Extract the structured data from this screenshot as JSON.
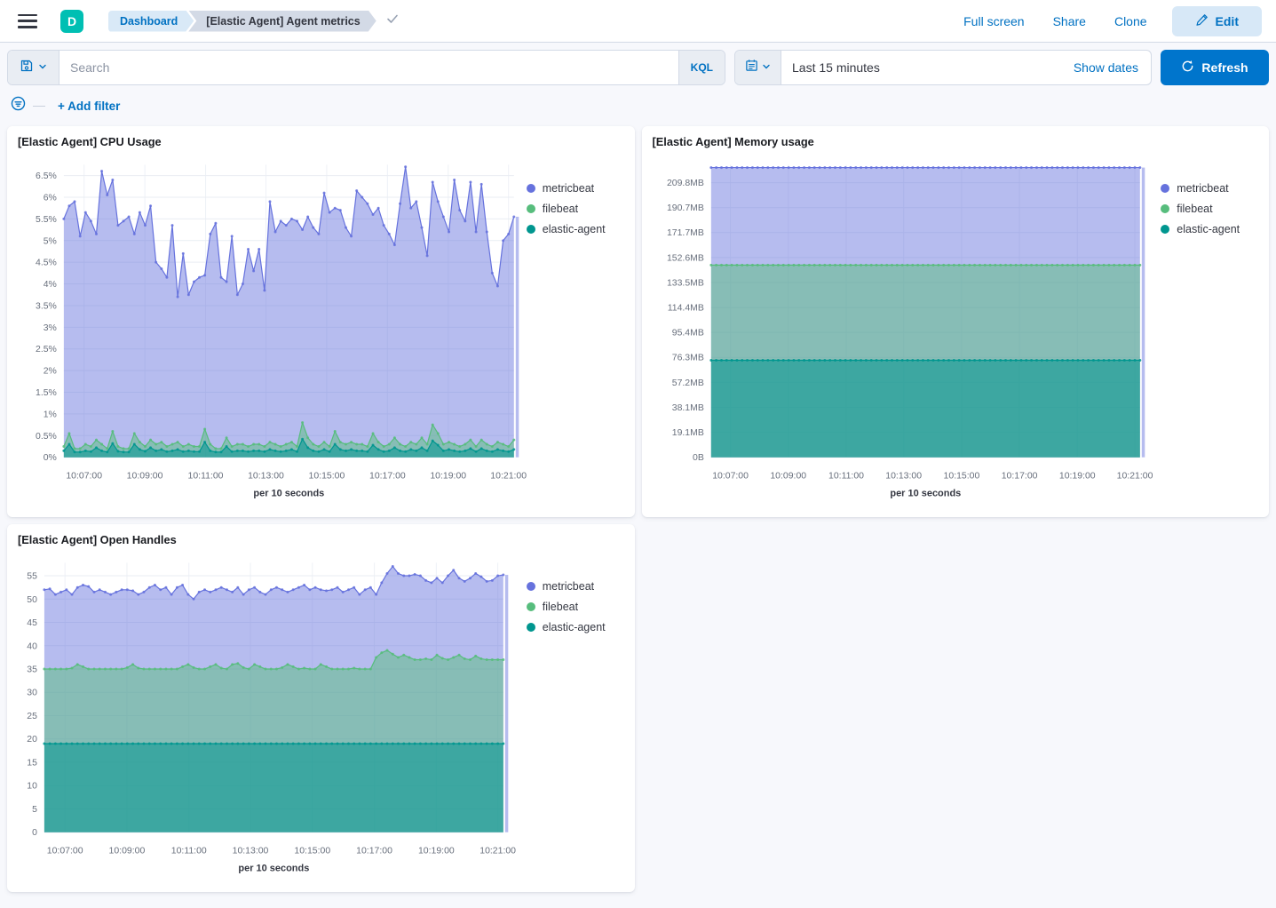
{
  "header": {
    "avatar_initial": "D",
    "breadcrumbs": [
      {
        "label": "Dashboard"
      },
      {
        "label": "[Elastic Agent] Agent metrics"
      }
    ],
    "actions": {
      "full_screen": "Full screen",
      "share": "Share",
      "clone": "Clone",
      "edit": "Edit"
    }
  },
  "toolbar": {
    "search_placeholder": "Search",
    "kql_label": "KQL",
    "time_range": "Last 15 minutes",
    "show_dates_label": "Show dates",
    "refresh_label": "Refresh",
    "add_filter_label": "+ Add filter"
  },
  "colors": {
    "accent_blue": "#0071c2",
    "refresh_blue": "#0075cc",
    "avatar_teal": "#00bfb3",
    "metricbeat": "#6672dd",
    "filebeat": "#57bd7d",
    "elastic_agent": "#00968f"
  },
  "chart_data": [
    {
      "type": "area",
      "title": "[Elastic Agent] CPU Usage",
      "x_axis_label": "per 10 seconds",
      "legend_position": "right",
      "grid": true,
      "ylim": [
        0,
        6.75
      ],
      "y_ticks": [
        {
          "v": 0,
          "label": "0%"
        },
        {
          "v": 0.5,
          "label": "0.5%"
        },
        {
          "v": 1,
          "label": "1%"
        },
        {
          "v": 1.5,
          "label": "1.5%"
        },
        {
          "v": 2,
          "label": "2%"
        },
        {
          "v": 2.5,
          "label": "2.5%"
        },
        {
          "v": 3,
          "label": "3%"
        },
        {
          "v": 3.5,
          "label": "3.5%"
        },
        {
          "v": 4,
          "label": "4%"
        },
        {
          "v": 4.5,
          "label": "4.5%"
        },
        {
          "v": 5,
          "label": "5%"
        },
        {
          "v": 5.5,
          "label": "5.5%"
        },
        {
          "v": 6,
          "label": "6%"
        },
        {
          "v": 6.5,
          "label": "6.5%"
        }
      ],
      "x_ticks": [
        {
          "f": 0.045,
          "label": "10:07:00"
        },
        {
          "f": 0.18,
          "label": "10:09:00"
        },
        {
          "f": 0.315,
          "label": "10:11:00"
        },
        {
          "f": 0.449,
          "label": "10:13:00"
        },
        {
          "f": 0.584,
          "label": "10:15:00"
        },
        {
          "f": 0.719,
          "label": "10:17:00"
        },
        {
          "f": 0.854,
          "label": "10:19:00"
        },
        {
          "f": 0.988,
          "label": "10:21:00"
        }
      ],
      "series": [
        {
          "name": "metricbeat",
          "color": "#6672dd",
          "fill": "rgba(102,114,221,0.48)",
          "values": [
            5.5,
            5.8,
            5.9,
            5.1,
            5.65,
            5.45,
            5.15,
            6.6,
            6.05,
            6.4,
            5.35,
            5.45,
            5.55,
            5.15,
            5.65,
            5.35,
            5.8,
            4.5,
            4.35,
            4.15,
            5.35,
            3.7,
            4.7,
            3.75,
            4.05,
            4.15,
            4.2,
            5.15,
            5.4,
            4.15,
            4.05,
            5.1,
            3.75,
            4.0,
            4.8,
            4.3,
            4.8,
            3.85,
            5.9,
            5.2,
            5.45,
            5.35,
            5.5,
            5.45,
            5.25,
            5.55,
            5.3,
            5.15,
            6.1,
            5.65,
            5.75,
            5.7,
            5.3,
            5.1,
            6.15,
            6.0,
            5.85,
            5.6,
            5.75,
            5.35,
            5.15,
            4.9,
            5.85,
            6.7,
            5.75,
            5.9,
            5.3,
            4.65,
            6.35,
            5.9,
            5.55,
            5.2,
            6.4,
            5.7,
            5.45,
            6.35,
            5.2,
            6.3,
            5.2,
            4.25,
            3.95,
            5.0,
            5.15,
            5.55
          ]
        },
        {
          "name": "filebeat",
          "color": "#57bd7d",
          "fill": "rgba(87,189,125,0.5)",
          "values": [
            0.25,
            0.55,
            0.2,
            0.2,
            0.3,
            0.25,
            0.4,
            0.3,
            0.2,
            0.6,
            0.25,
            0.2,
            0.2,
            0.55,
            0.35,
            0.25,
            0.4,
            0.3,
            0.35,
            0.25,
            0.3,
            0.35,
            0.25,
            0.3,
            0.25,
            0.25,
            0.65,
            0.3,
            0.2,
            0.2,
            0.45,
            0.25,
            0.3,
            0.3,
            0.25,
            0.3,
            0.3,
            0.25,
            0.35,
            0.3,
            0.25,
            0.3,
            0.35,
            0.25,
            0.8,
            0.45,
            0.3,
            0.25,
            0.35,
            0.25,
            0.6,
            0.35,
            0.3,
            0.35,
            0.3,
            0.3,
            0.25,
            0.55,
            0.35,
            0.25,
            0.3,
            0.45,
            0.3,
            0.25,
            0.35,
            0.3,
            0.45,
            0.3,
            0.75,
            0.55,
            0.3,
            0.35,
            0.3,
            0.25,
            0.3,
            0.4,
            0.25,
            0.4,
            0.3,
            0.25,
            0.35,
            0.3,
            0.25,
            0.4
          ]
        },
        {
          "name": "elastic-agent",
          "color": "#00968f",
          "fill": "rgba(0,150,143,0.55)",
          "values": [
            0.15,
            0.3,
            0.12,
            0.12,
            0.15,
            0.13,
            0.22,
            0.15,
            0.12,
            0.32,
            0.14,
            0.12,
            0.12,
            0.3,
            0.18,
            0.14,
            0.22,
            0.15,
            0.18,
            0.13,
            0.15,
            0.18,
            0.13,
            0.15,
            0.13,
            0.13,
            0.35,
            0.15,
            0.12,
            0.12,
            0.25,
            0.13,
            0.15,
            0.15,
            0.13,
            0.15,
            0.15,
            0.13,
            0.18,
            0.15,
            0.13,
            0.15,
            0.18,
            0.13,
            0.42,
            0.22,
            0.15,
            0.13,
            0.18,
            0.13,
            0.3,
            0.18,
            0.15,
            0.18,
            0.15,
            0.15,
            0.13,
            0.28,
            0.18,
            0.13,
            0.15,
            0.22,
            0.15,
            0.13,
            0.18,
            0.15,
            0.22,
            0.15,
            0.38,
            0.28,
            0.15,
            0.18,
            0.15,
            0.13,
            0.15,
            0.2,
            0.13,
            0.2,
            0.15,
            0.13,
            0.18,
            0.15,
            0.13,
            0.18
          ]
        }
      ]
    },
    {
      "type": "area",
      "title": "[Elastic Agent] Memory usage",
      "x_axis_label": "per 10 seconds",
      "legend_position": "right",
      "grid": true,
      "ylim": [
        0,
        223.5
      ],
      "y_ticks": [
        {
          "v": 0,
          "label": "0B"
        },
        {
          "v": 19.1,
          "label": "19.1MB"
        },
        {
          "v": 38.1,
          "label": "38.1MB"
        },
        {
          "v": 57.2,
          "label": "57.2MB"
        },
        {
          "v": 76.3,
          "label": "76.3MB"
        },
        {
          "v": 95.4,
          "label": "95.4MB"
        },
        {
          "v": 114.4,
          "label": "114.4MB"
        },
        {
          "v": 133.5,
          "label": "133.5MB"
        },
        {
          "v": 152.6,
          "label": "152.6MB"
        },
        {
          "v": 171.7,
          "label": "171.7MB"
        },
        {
          "v": 190.7,
          "label": "190.7MB"
        },
        {
          "v": 209.8,
          "label": "209.8MB"
        }
      ],
      "x_ticks": [
        {
          "f": 0.045,
          "label": "10:07:00"
        },
        {
          "f": 0.18,
          "label": "10:09:00"
        },
        {
          "f": 0.315,
          "label": "10:11:00"
        },
        {
          "f": 0.449,
          "label": "10:13:00"
        },
        {
          "f": 0.584,
          "label": "10:15:00"
        },
        {
          "f": 0.719,
          "label": "10:17:00"
        },
        {
          "f": 0.854,
          "label": "10:19:00"
        },
        {
          "f": 0.988,
          "label": "10:21:00"
        }
      ],
      "series": [
        {
          "name": "metricbeat",
          "color": "#6672dd",
          "fill": "rgba(102,114,221,0.48)",
          "flat": 221.3,
          "points": 84
        },
        {
          "name": "filebeat",
          "color": "#57bd7d",
          "fill": "rgba(87,189,125,0.5)",
          "flat": 146.8,
          "points": 84
        },
        {
          "name": "elastic-agent",
          "color": "#00968f",
          "fill": "rgba(0,150,143,0.55)",
          "flat": 74.1,
          "points": 84
        }
      ]
    },
    {
      "type": "area",
      "title": "[Elastic Agent] Open Handles",
      "x_axis_label": "per 10 seconds",
      "legend_position": "right",
      "grid": true,
      "ylim": [
        0,
        57.8
      ],
      "y_ticks": [
        {
          "v": 0,
          "label": "0"
        },
        {
          "v": 5,
          "label": "5"
        },
        {
          "v": 10,
          "label": "10"
        },
        {
          "v": 15,
          "label": "15"
        },
        {
          "v": 20,
          "label": "20"
        },
        {
          "v": 25,
          "label": "25"
        },
        {
          "v": 30,
          "label": "30"
        },
        {
          "v": 35,
          "label": "35"
        },
        {
          "v": 40,
          "label": "40"
        },
        {
          "v": 45,
          "label": "45"
        },
        {
          "v": 50,
          "label": "50"
        },
        {
          "v": 55,
          "label": "55"
        }
      ],
      "x_ticks": [
        {
          "f": 0.045,
          "label": "10:07:00"
        },
        {
          "f": 0.18,
          "label": "10:09:00"
        },
        {
          "f": 0.315,
          "label": "10:11:00"
        },
        {
          "f": 0.449,
          "label": "10:13:00"
        },
        {
          "f": 0.584,
          "label": "10:15:00"
        },
        {
          "f": 0.719,
          "label": "10:17:00"
        },
        {
          "f": 0.854,
          "label": "10:19:00"
        },
        {
          "f": 0.988,
          "label": "10:21:00"
        }
      ],
      "series": [
        {
          "name": "metricbeat",
          "color": "#6672dd",
          "fill": "rgba(102,114,221,0.48)",
          "values": [
            52,
            52.2,
            51,
            51.5,
            52,
            51,
            52.5,
            53,
            52.7,
            51.5,
            52,
            51.5,
            51,
            51.5,
            52,
            52,
            51.8,
            51,
            51.5,
            52.5,
            53,
            52,
            52.5,
            51,
            52.5,
            53,
            51,
            50,
            51.5,
            52,
            51.5,
            52,
            52.5,
            52,
            51.5,
            52.5,
            51,
            52,
            52.5,
            51.5,
            51,
            52,
            52.5,
            52,
            51.5,
            52,
            52.5,
            53,
            52,
            52.5,
            52,
            51.8,
            52,
            52.5,
            51.5,
            52,
            52.5,
            51,
            52,
            52.5,
            51,
            53.5,
            55.5,
            57,
            55.5,
            55,
            55,
            55.3,
            55,
            54,
            53.5,
            54.5,
            53.5,
            55,
            56.2,
            54.5,
            53.8,
            54.5,
            55.5,
            54.8,
            53.8,
            54,
            55,
            55.2
          ]
        },
        {
          "name": "filebeat",
          "color": "#57bd7d",
          "fill": "rgba(87,189,125,0.5)",
          "values": [
            35,
            35,
            35,
            35,
            35,
            35.2,
            36,
            35.5,
            35,
            35,
            35,
            35,
            35,
            35,
            35,
            35.3,
            36,
            35.2,
            35,
            35,
            35,
            35,
            35,
            35,
            35,
            35.5,
            36,
            35.3,
            35,
            35,
            35.5,
            36,
            35.2,
            35,
            36,
            36.2,
            35.3,
            35,
            36,
            35.5,
            35,
            35,
            35,
            35.3,
            36,
            35.5,
            35,
            35.2,
            35,
            35,
            36,
            35.5,
            35,
            35,
            35,
            35,
            35.2,
            35,
            35,
            35,
            37.5,
            38.5,
            39,
            38.2,
            37.5,
            38,
            37.5,
            37,
            37,
            37.2,
            37,
            38,
            37.3,
            37,
            37.5,
            38,
            37.2,
            37,
            37.8,
            37.2,
            37,
            37,
            37,
            37
          ]
        },
        {
          "name": "elastic-agent",
          "color": "#00968f",
          "fill": "rgba(0,150,143,0.55)",
          "flat": 19,
          "points": 84
        }
      ]
    }
  ]
}
